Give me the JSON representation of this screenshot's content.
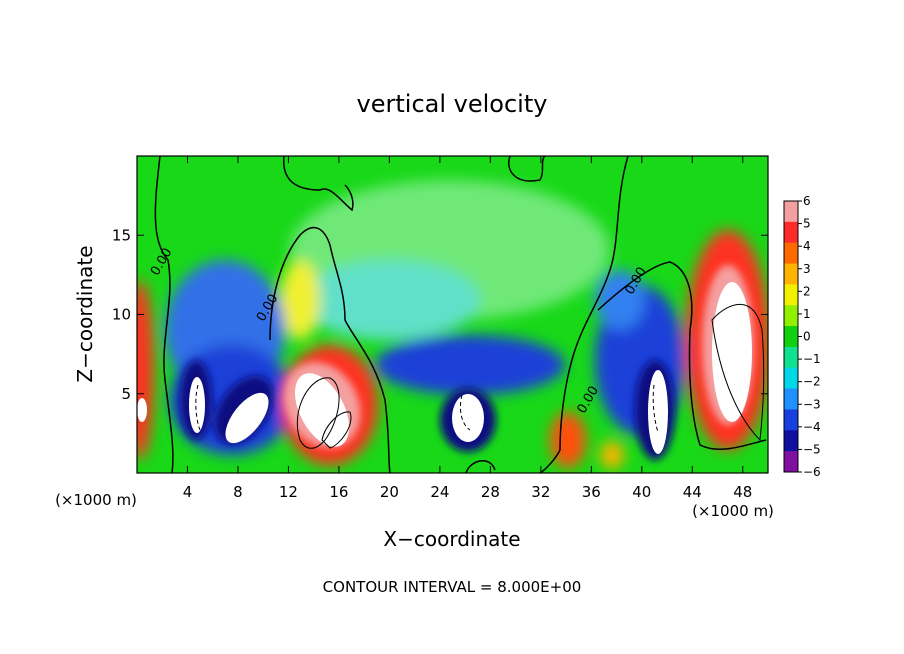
{
  "chart_data": {
    "type": "heatmap",
    "title": "vertical velocity",
    "xlabel": "X−coordinate",
    "ylabel": "Z−coordinate",
    "x_unit_label": "(×1000 m)",
    "x_unit_label_right": "(×1000 m)",
    "xlim": [
      0,
      50
    ],
    "ylim": [
      0,
      20
    ],
    "xticks": [
      4,
      8,
      12,
      16,
      20,
      24,
      28,
      32,
      36,
      40,
      44,
      48
    ],
    "yticks": [
      5,
      10,
      15
    ],
    "colorbar": {
      "ticks": [
        6,
        5,
        4,
        3,
        2,
        1,
        0,
        -1,
        -2,
        -3,
        -4,
        -5,
        -6
      ],
      "tick_labels": [
        "6",
        "5",
        "4",
        "3",
        "2",
        "1",
        "0",
        "−1",
        "−2",
        "−3",
        "−4",
        "−5",
        "−6"
      ],
      "range": [
        -6,
        6
      ],
      "colors": [
        "#f4a0a0",
        "#ff2a2a",
        "#ff6a00",
        "#ffb400",
        "#f0f000",
        "#90f000",
        "#10d010",
        "#10e090",
        "#00d8e8",
        "#2090ff",
        "#1840e0",
        "#1010a0",
        "#8010a0"
      ]
    },
    "contour_labels": [
      {
        "text": "0.00",
        "x": 2.2,
        "z": 13.2
      },
      {
        "text": "0.00",
        "x": 10.6,
        "z": 10.3
      },
      {
        "text": "0.00",
        "x": 39.8,
        "z": 12.0
      },
      {
        "text": "0.00",
        "x": 36.0,
        "z": 4.5
      }
    ],
    "footer": "CONTOUR INTERVAL = 8.000E+00"
  }
}
